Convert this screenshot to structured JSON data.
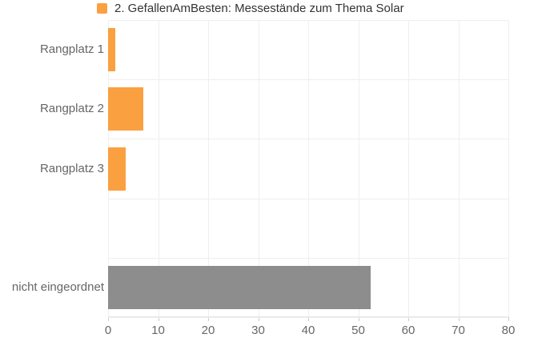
{
  "legend": {
    "label": "2. GefallenAmBesten: Messestände zum Thema Solar",
    "marker_color": "#faa041"
  },
  "chart_data": {
    "type": "bar",
    "orientation": "horizontal",
    "title": "2. GefallenAmBesten: Messestände zum Thema Solar",
    "categories": [
      "Rangplatz 1",
      "Rangplatz 2",
      "Rangplatz 3",
      "",
      "nicht eingeordnet"
    ],
    "series": [
      {
        "name": "2. GefallenAmBesten: Messestände zum Thema Solar",
        "values": [
          1.4,
          7,
          3.5,
          null,
          52.4
        ],
        "colors": [
          "#faa041",
          "#faa041",
          "#faa041",
          null,
          "#8d8d8d"
        ]
      }
    ],
    "xlabel": "",
    "ylabel": "",
    "xlim": [
      0,
      80
    ],
    "x_ticks": [
      "0",
      "10",
      "20",
      "30",
      "40",
      "50",
      "60",
      "70",
      "80"
    ],
    "grid": true,
    "legend_position": "top"
  },
  "colors": {
    "bar_orange": "#faa041",
    "bar_gray": "#8d8d8d",
    "grid_line": "#efefef",
    "axis_tick": "#cccccc",
    "axis_text": "#666666",
    "legend_text": "#333333",
    "background": "#ffffff"
  }
}
